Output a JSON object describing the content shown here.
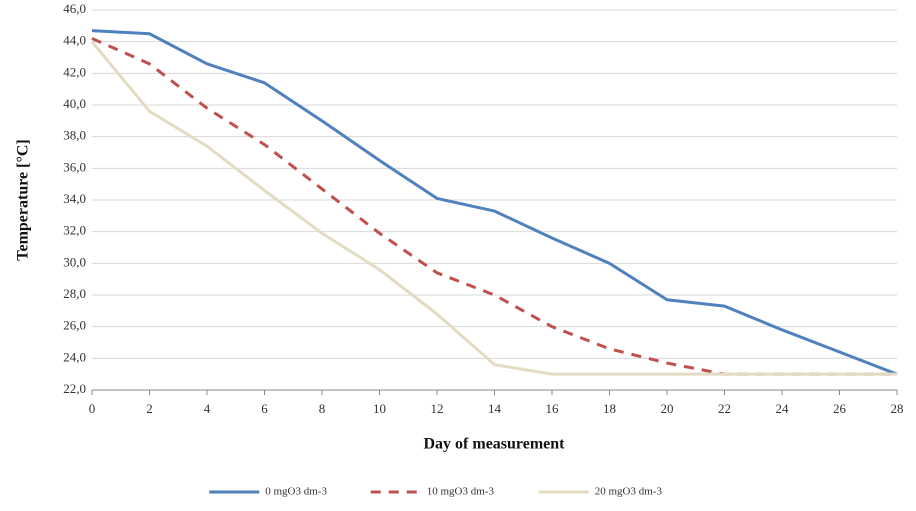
{
  "chart_data": {
    "type": "line",
    "x_label": "Day of measurement",
    "y_label": "Temperature [°C]",
    "x": [
      0,
      2,
      4,
      6,
      8,
      10,
      12,
      14,
      16,
      18,
      20,
      22,
      24,
      26,
      28
    ],
    "xlim": [
      0,
      28
    ],
    "xticks": [
      0,
      2,
      4,
      6,
      8,
      10,
      12,
      14,
      16,
      18,
      20,
      22,
      24,
      26,
      28
    ],
    "ylim": [
      22,
      46
    ],
    "yticks": [
      {
        "value": 22,
        "label": "22,0"
      },
      {
        "value": 24,
        "label": "24,0"
      },
      {
        "value": 26,
        "label": "26,0"
      },
      {
        "value": 28,
        "label": "28,0"
      },
      {
        "value": 30,
        "label": "30,0"
      },
      {
        "value": 32,
        "label": "32,0"
      },
      {
        "value": 34,
        "label": "34,0"
      },
      {
        "value": 36,
        "label": "36,0"
      },
      {
        "value": 38,
        "label": "38,0"
      },
      {
        "value": 40,
        "label": "40,0"
      },
      {
        "value": 42,
        "label": "42,0"
      },
      {
        "value": 44,
        "label": "44,0"
      },
      {
        "value": 46,
        "label": "46,0"
      }
    ],
    "grid": true,
    "legend": "bottom",
    "series": [
      {
        "name": "0 mgO3 dm-3",
        "color": "#4f81bd",
        "line_style": "solid",
        "values": [
          44.7,
          44.5,
          42.6,
          41.4,
          39.0,
          36.5,
          34.1,
          33.3,
          31.6,
          30.0,
          27.7,
          27.3,
          25.8,
          24.4,
          23.0
        ]
      },
      {
        "name": "10 mgO3 dm-3",
        "color": "#c0504d",
        "line_style": "dashed",
        "values": [
          44.2,
          42.6,
          39.8,
          37.5,
          34.7,
          31.9,
          29.4,
          28.0,
          26.0,
          24.6,
          23.7,
          23.0,
          23.0,
          23.0,
          23.0
        ]
      },
      {
        "name": "20 mgO3 dm-3",
        "color": "#e3dcc2",
        "line_style": "solid",
        "values": [
          44.0,
          39.6,
          37.4,
          34.6,
          31.9,
          29.6,
          26.8,
          23.6,
          23.0,
          23.0,
          23.0,
          23.0,
          23.0,
          23.0,
          23.0
        ]
      }
    ]
  }
}
